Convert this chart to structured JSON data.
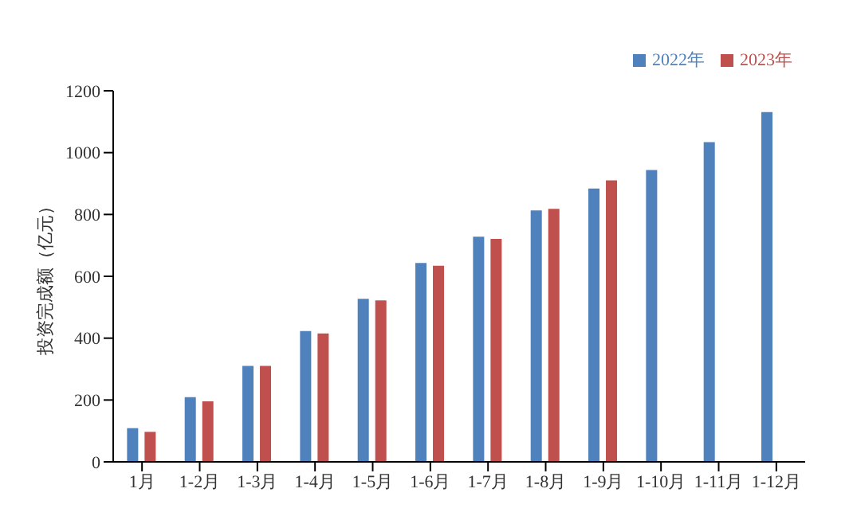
{
  "chart_data": {
    "type": "bar",
    "ylabel": "投资完成额（亿元）",
    "categories": [
      "1月",
      "1-2月",
      "1-3月",
      "1-4月",
      "1-5月",
      "1-6月",
      "1-7月",
      "1-8月",
      "1-9月",
      "1-10月",
      "1-11月",
      "1-12月"
    ],
    "series": [
      {
        "name": "2022年",
        "color": "#4f81bd",
        "values": [
          109,
          209,
          310,
          423,
          527,
          643,
          728,
          813,
          884,
          944,
          1034,
          1131
        ]
      },
      {
        "name": "2023年",
        "color": "#c0504d",
        "values": [
          97,
          196,
          310,
          415,
          522,
          634,
          721,
          818,
          910,
          null,
          null,
          null
        ]
      }
    ],
    "ylim": [
      0,
      1200
    ],
    "yticks": [
      0,
      200,
      400,
      600,
      800,
      1000,
      1200
    ],
    "legend": "top right"
  }
}
